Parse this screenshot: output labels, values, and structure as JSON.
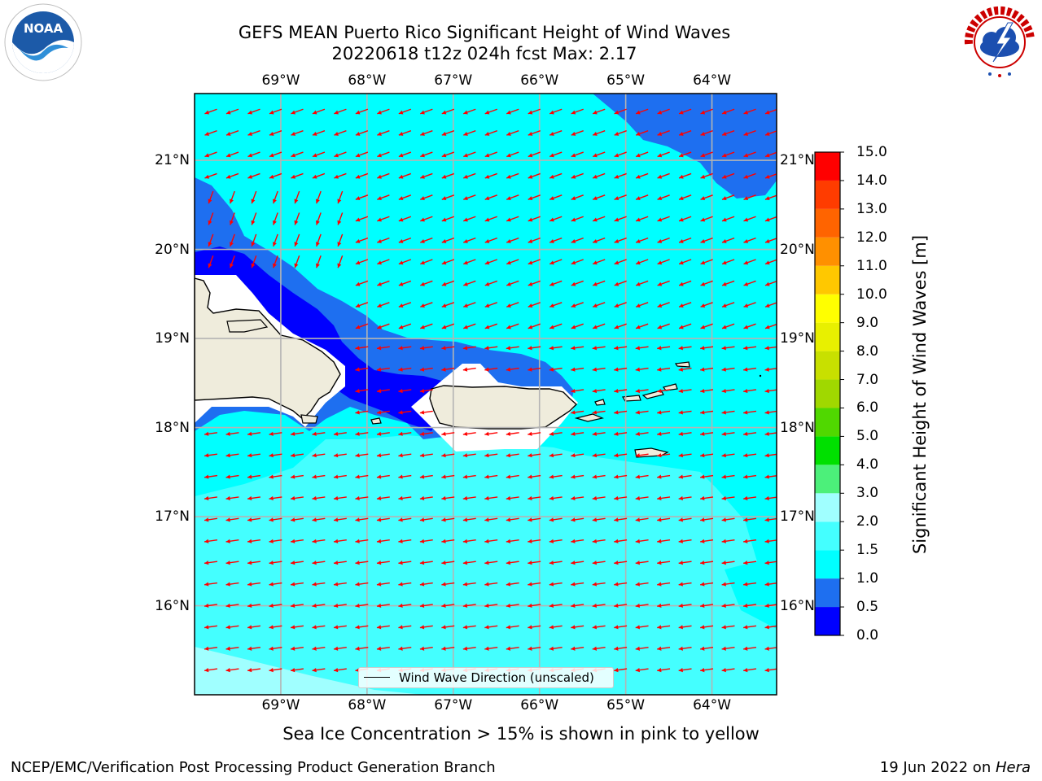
{
  "title": {
    "line1": "GEFS MEAN Puerto Rico Significant Height of Wind Waves",
    "line2": "20220618 t12z 024h fcst   Max: 2.17"
  },
  "map": {
    "lon_labels": [
      "69°W",
      "68°W",
      "67°W",
      "66°W",
      "65°W",
      "64°W"
    ],
    "lat_labels": [
      "21°N",
      "20°N",
      "19°N",
      "18°N",
      "17°N",
      "16°N"
    ],
    "lon_range": [
      -70.0,
      -63.25
    ],
    "lat_range": [
      15.0,
      21.75
    ],
    "land_color": "#efecdc",
    "arrow_color": "#ff0000",
    "gridlines": true,
    "wave_direction": "mostly from the east, locally from the northeast near Hispaniola"
  },
  "legend": {
    "label": "Wind Wave Direction (unscaled)",
    "placement": "bottom-center"
  },
  "colorbar": {
    "title": "Significant Height of Wind Waves [m]",
    "ticks": [
      "0.0",
      "0.5",
      "1.0",
      "1.5",
      "2.0",
      "3.0",
      "4.0",
      "5.0",
      "6.0",
      "7.0",
      "8.0",
      "9.0",
      "10.0",
      "11.0",
      "12.0",
      "13.0",
      "14.0",
      "15.0"
    ],
    "colors": [
      "#0000ff",
      "#1e6ff0",
      "#00ffff",
      "#44ffff",
      "#a0ffff",
      "#4cf07a",
      "#00e000",
      "#50d800",
      "#a0d800",
      "#c8e000",
      "#e8f000",
      "#ffff00",
      "#ffc800",
      "#ff9000",
      "#ff6400",
      "#ff3c00",
      "#ff0000"
    ]
  },
  "sea_ice_note": "Sea Ice Concentration > 15% is shown in pink to yellow",
  "footer": {
    "left": "NCEP/EMC/Verification Post Processing Product Generation Branch",
    "right_prefix": "19 Jun 2022 on ",
    "right_host": "Hera"
  },
  "logos": {
    "left": "NOAA",
    "right": "NATIONAL WEATHER SERVICE"
  }
}
